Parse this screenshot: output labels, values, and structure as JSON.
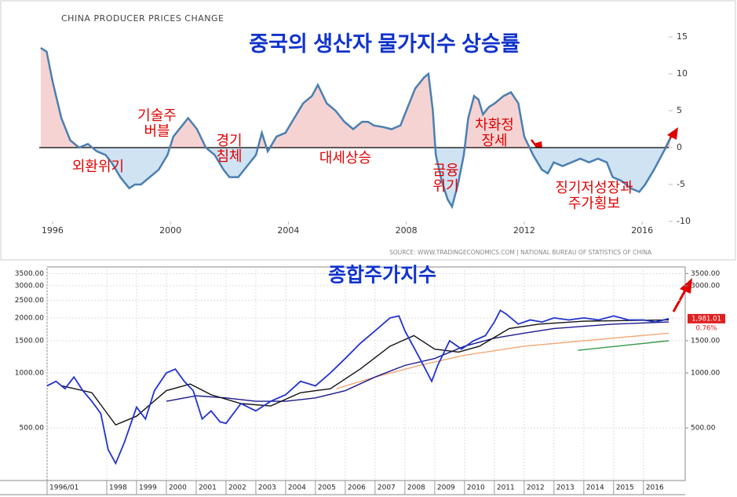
{
  "chart_data": [
    {
      "type": "line",
      "title": "CHINA PRODUCER PRICES CHANGE",
      "subtitle": "중국의 생산자 물가지수 상승률",
      "source": "SOURCE: WWW.TRADINGECONOMICS.COM | NATIONAL BUREAU OF STATISTICS OF CHINA",
      "x": [
        1995.6,
        1995.8,
        1996.0,
        1996.3,
        1996.6,
        1996.9,
        1997.2,
        1997.5,
        1997.8,
        1998.0,
        1998.3,
        1998.6,
        1998.8,
        1999.0,
        1999.3,
        1999.6,
        1999.9,
        2000.1,
        2000.4,
        2000.6,
        2000.9,
        2001.2,
        2001.5,
        2001.8,
        2002.0,
        2002.3,
        2002.6,
        2002.9,
        2003.1,
        2003.3,
        2003.6,
        2003.9,
        2004.2,
        2004.5,
        2004.8,
        2005.0,
        2005.3,
        2005.6,
        2005.9,
        2006.2,
        2006.5,
        2006.7,
        2006.9,
        2007.2,
        2007.5,
        2007.8,
        2008.0,
        2008.3,
        2008.6,
        2008.75,
        2008.9,
        2009.0,
        2009.2,
        2009.4,
        2009.55,
        2009.75,
        2009.95,
        2010.1,
        2010.3,
        2010.45,
        2010.6,
        2010.8,
        2011.0,
        2011.3,
        2011.55,
        2011.8,
        2012.0,
        2012.3,
        2012.6,
        2012.8,
        2013.0,
        2013.3,
        2013.6,
        2013.9,
        2014.2,
        2014.5,
        2014.8,
        2015.0,
        2015.3,
        2015.6,
        2015.9,
        2016.1,
        2016.4,
        2016.6,
        2016.8,
        2016.95
      ],
      "series": [
        {
          "color": "#4a7fb0",
          "positive_color": "#f6d3d3",
          "negative_color": "#cfe3f3",
          "values": [
            13.5,
            13,
            9,
            4,
            1,
            0,
            0.5,
            -0.5,
            -1,
            -2,
            -4,
            -5.5,
            -5,
            -5,
            -4,
            -3,
            -1,
            1.5,
            3,
            4,
            2.5,
            0,
            -1,
            -3,
            -4,
            -4,
            -2.5,
            -1,
            2,
            -0.5,
            1.5,
            2,
            4,
            6,
            7,
            8.5,
            6,
            5,
            3.5,
            2.5,
            3.5,
            3.5,
            3,
            2.8,
            2.5,
            3,
            5,
            8,
            9.5,
            10,
            5,
            -1,
            -4.5,
            -7,
            -8,
            -5,
            -1,
            4,
            7,
            6.5,
            4.5,
            5.5,
            6,
            7,
            7.5,
            6,
            1.5,
            -1,
            -3,
            -3.5,
            -2,
            -2.5,
            -2,
            -1.5,
            -2,
            -1.5,
            -2,
            -4,
            -4.5,
            -5.5,
            -6,
            -5,
            -3,
            -1.5,
            0,
            1.2
          ]
        }
      ],
      "xlim": [
        1995.55,
        2016.9
      ],
      "xticks": [
        1996,
        2000,
        2004,
        2008,
        2012,
        2016
      ],
      "ylim": [
        -10,
        15
      ],
      "yticks": [
        -10,
        -5,
        0,
        5,
        10,
        15
      ],
      "annotations": [
        {
          "lines": [
            "기술주",
            "버블"
          ]
        },
        {
          "lines": [
            "경기",
            "침체"
          ]
        },
        {
          "lines": [
            "외환위기"
          ]
        },
        {
          "lines": [
            "대세상승"
          ]
        },
        {
          "lines": [
            "금융",
            "위기"
          ]
        },
        {
          "lines": [
            "차화정",
            "장세"
          ]
        },
        {
          "lines": [
            "징기저성장과",
            "주가횡보"
          ]
        }
      ]
    },
    {
      "type": "line",
      "title": "종합주가지수",
      "log_scale": true,
      "grid": true,
      "series": [
        {
          "color": "#2233cc",
          "x": [
            1996.0,
            1996.3,
            1996.6,
            1996.9,
            1997.2,
            1997.5,
            1997.8,
            1998.05,
            1998.3,
            1998.6,
            1999.0,
            1999.3,
            1999.6,
            2000.0,
            2000.3,
            2000.6,
            2000.9,
            2001.2,
            2001.5,
            2001.8,
            2002.0,
            2002.5,
            2003.0,
            2003.5,
            2004.0,
            2004.5,
            2005.0,
            2005.5,
            2006.0,
            2006.5,
            2007.0,
            2007.5,
            2007.8,
            2008.0,
            2008.5,
            2008.9,
            2009.1,
            2009.5,
            2009.9,
            2010.3,
            2010.7,
            2011.0,
            2011.2,
            2011.4,
            2011.8,
            2012.2,
            2012.6,
            2013.0,
            2013.5,
            2014.0,
            2014.5,
            2015.0,
            2015.5,
            2016.0,
            2016.4,
            2016.85
          ],
          "values": [
            850,
            900,
            820,
            950,
            800,
            700,
            600,
            380,
            320,
            420,
            650,
            560,
            800,
            1000,
            1050,
            900,
            800,
            560,
            620,
            540,
            530,
            680,
            620,
            700,
            760,
            900,
            850,
            1000,
            1200,
            1450,
            1700,
            2000,
            2050,
            1700,
            1200,
            900,
            1100,
            1500,
            1350,
            1500,
            1600,
            1900,
            2200,
            2100,
            1850,
            1950,
            1900,
            2000,
            1950,
            2000,
            1950,
            2050,
            1950,
            1950,
            1900,
            1981.01
          ]
        },
        {
          "color": "#111111",
          "x": [
            1996.5,
            1997.5,
            1998.3,
            1999.0,
            2000.0,
            2000.8,
            2001.5,
            2002.5,
            2003.5,
            2004.5,
            2005.5,
            2006.5,
            2007.5,
            2008.3,
            2009.0,
            2009.8,
            2010.5,
            2011.5,
            2012.5,
            2014.0,
            2016.85
          ],
          "values": [
            850,
            780,
            520,
            580,
            800,
            870,
            760,
            680,
            660,
            780,
            820,
            1050,
            1400,
            1600,
            1350,
            1300,
            1400,
            1750,
            1850,
            1920,
            1950
          ]
        },
        {
          "color": "#1a1a8a",
          "x": [
            2000.0,
            2001.0,
            2002.0,
            2003.0,
            2004.0,
            2005.0,
            2006.0,
            2007.0,
            2008.0,
            2009.0,
            2010.0,
            2011.0,
            2012.0,
            2013.0,
            2014.0,
            2015.0,
            2016.85
          ],
          "values": [
            700,
            750,
            730,
            700,
            700,
            730,
            800,
            950,
            1100,
            1200,
            1400,
            1550,
            1650,
            1750,
            1800,
            1850,
            1900
          ]
        },
        {
          "color": "#f0a878",
          "x": [
            2005.7,
            2007.0,
            2008.5,
            2010.0,
            2012.0,
            2014.0,
            2016.85
          ],
          "values": [
            820,
            950,
            1100,
            1250,
            1400,
            1500,
            1650
          ]
        },
        {
          "color": "#3a9a4a",
          "x": [
            2013.8,
            2016.85
          ],
          "values": [
            1330,
            1500
          ]
        }
      ],
      "last_label": "1,981.01",
      "last_change": "0.76%",
      "xlim": [
        1996,
        2017.4
      ],
      "xticks": [
        {
          "value": 1996,
          "label": "1996/01"
        },
        1998,
        1999,
        2000,
        2001,
        2002,
        2003,
        2004,
        2005,
        2006,
        2007,
        2008,
        2009,
        2010,
        2011,
        2012,
        2013,
        2014,
        2015,
        2016
      ],
      "ylim": [
        258,
        3800
      ],
      "yticks": [
        {
          "value": 500,
          "label": "500.00"
        },
        {
          "value": 1000,
          "label": "1000.00"
        },
        {
          "value": 1500,
          "label": "1500.00"
        },
        {
          "value": 2000,
          "label": "2000.00"
        },
        {
          "value": 2500,
          "label": "2500.00"
        },
        {
          "value": 3000,
          "label": "3000.00"
        },
        {
          "value": 3500,
          "label": "3500.00"
        }
      ],
      "y2lim": [
        258,
        3800
      ],
      "y2ticks": [
        {
          "value": 500,
          "label": "500.00"
        },
        {
          "value": 1000,
          "label": "1000.00"
        },
        {
          "value": 1500,
          "label": "1500.00"
        },
        {
          "value": 3000,
          "label": "3000.00"
        },
        {
          "value": 3500,
          "label": "3500.00"
        }
      ]
    }
  ]
}
